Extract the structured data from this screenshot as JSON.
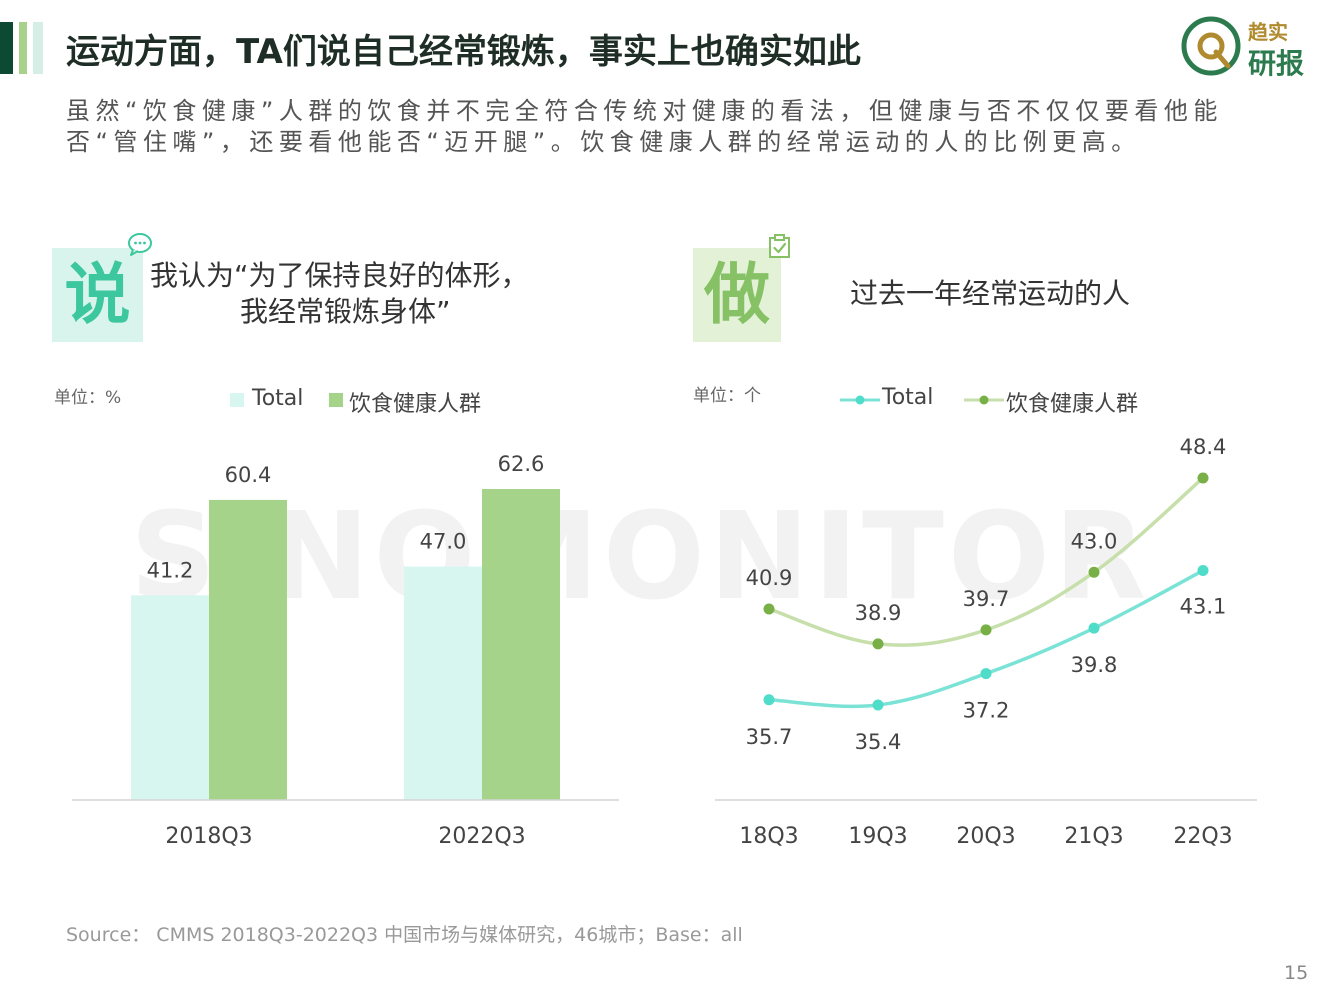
{
  "header": {
    "title": "运动方面，TA们说自己经常锻炼，事实上也确实如此",
    "intro": "虽然“饮食健康”人群的饮食并不完全符合传统对健康的看法，但健康与否不仅仅要看他能否“管住嘴”，还要看他能否“迈开腿”。饮食健康人群的经常运动的人的比例更高。",
    "logo_line1": "趋实",
    "logo_line2": "研报"
  },
  "watermark": "SINOMONITOR",
  "say_panel": {
    "badge": "说",
    "quote_line1": "我认为“为了保持良好的体形，",
    "quote_line2": "我经常锻炼身体”",
    "unit": "单位：%"
  },
  "do_panel": {
    "badge": "做",
    "heading": "过去一年经常运动的人",
    "unit": "单位：个"
  },
  "colors": {
    "total_bar": "#d8f6f0",
    "group_bar": "#a6d38a",
    "total_line": "#7be3d6",
    "group_line": "#c6dfab",
    "total_dot": "#4fdcc8",
    "group_dot": "#78b047"
  },
  "chart_data": [
    {
      "type": "bar",
      "categories": [
        "2018Q3",
        "2022Q3"
      ],
      "series": [
        {
          "name": "Total",
          "values": [
            41.2,
            47.0
          ],
          "labels": [
            "41.2",
            "47.0"
          ]
        },
        {
          "name": "饮食健康人群",
          "values": [
            60.4,
            62.6
          ],
          "labels": [
            "60.4",
            "62.6"
          ]
        }
      ],
      "ylim": [
        0,
        70
      ]
    },
    {
      "type": "line",
      "categories": [
        "18Q3",
        "19Q3",
        "20Q3",
        "21Q3",
        "22Q3"
      ],
      "series": [
        {
          "name": "Total",
          "values": [
            35.7,
            35.4,
            37.2,
            39.8,
            43.1
          ],
          "labels": [
            "35.7",
            "35.4",
            "37.2",
            "39.8",
            "43.1"
          ]
        },
        {
          "name": "饮食健康人群",
          "values": [
            40.9,
            38.9,
            39.7,
            43.0,
            48.4
          ],
          "labels": [
            "40.9",
            "38.9",
            "39.7",
            "43.0",
            "48.4"
          ]
        }
      ],
      "ylim": [
        30,
        50
      ]
    }
  ],
  "footer": {
    "source": "Source： CMMS 2018Q3-2022Q3 中国市场与媒体研究，46城市；Base：all",
    "page": "15"
  }
}
